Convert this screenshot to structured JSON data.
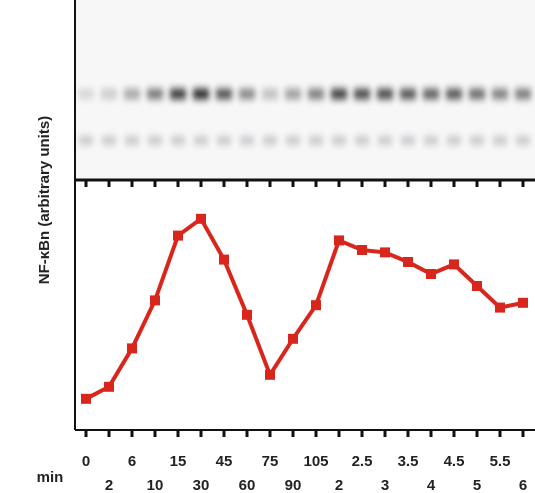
{
  "chart_data": {
    "type": "line",
    "y_label": "NF-κBn (arbitrary units)",
    "x_unit_label": "min",
    "categories": [
      "0",
      "2",
      "6",
      "10",
      "15",
      "30",
      "45",
      "60",
      "75",
      "90",
      "105",
      "2",
      "2.5",
      "3",
      "3.5",
      "4",
      "4.5",
      "5",
      "5.5",
      "6"
    ],
    "series": [
      {
        "color": "#d9261c",
        "values": [
          13,
          18,
          34,
          54,
          81,
          88,
          71,
          48,
          23,
          38,
          52,
          79,
          75,
          74,
          70,
          65,
          69,
          60,
          51,
          53
        ]
      }
    ],
    "ylim": [
      0,
      100
    ]
  }
}
